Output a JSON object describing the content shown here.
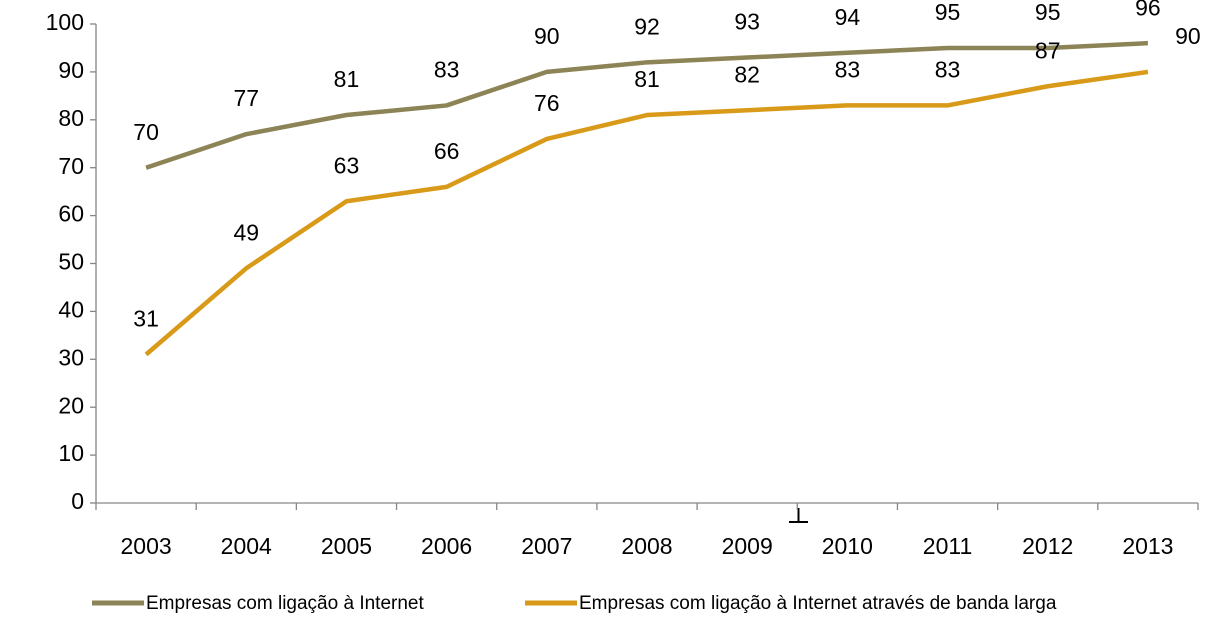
{
  "chart_data": {
    "type": "line",
    "categories": [
      "2003",
      "2004",
      "2005",
      "2006",
      "2007",
      "2008",
      "2009",
      "2010",
      "2011",
      "2012",
      "2013"
    ],
    "series": [
      {
        "name": "Empresas com ligação à Internet",
        "color": "#8c8456",
        "values": [
          70,
          77,
          81,
          83,
          90,
          92,
          93,
          94,
          95,
          95,
          96
        ]
      },
      {
        "name": "Empresas com ligação à Internet através de banda larga",
        "color": "#d99a1a",
        "values": [
          31,
          49,
          63,
          66,
          76,
          81,
          82,
          83,
          83,
          87,
          90
        ]
      }
    ],
    "ylim": [
      0,
      100
    ],
    "yticks": [
      0,
      10,
      20,
      30,
      40,
      50,
      60,
      70,
      80,
      90,
      100
    ],
    "grid": false,
    "legend": "bottom"
  }
}
